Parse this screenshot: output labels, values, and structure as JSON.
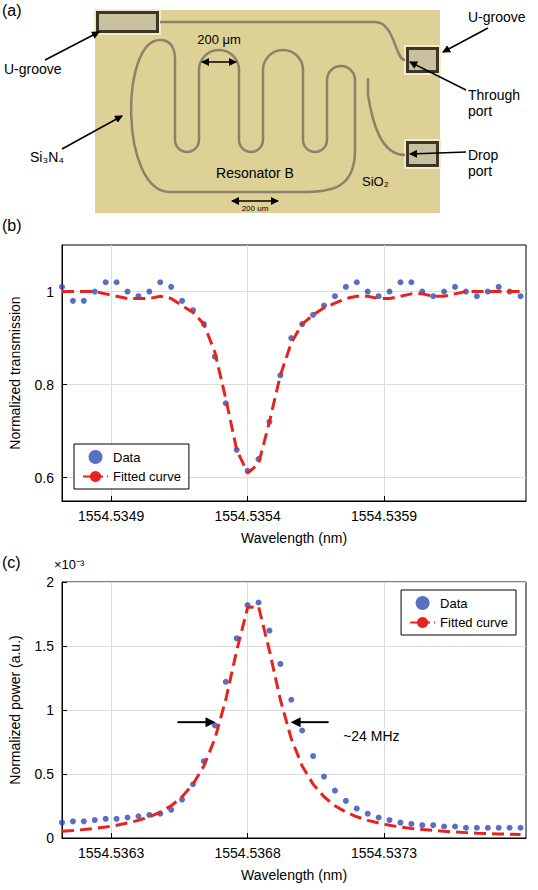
{
  "photo": {
    "panel_label": "(a)",
    "labels": {
      "u_groove_left": "U-groove",
      "u_groove_right": "U-groove",
      "spacing": "200 μm",
      "through_port": "Through port",
      "drop_port": "Drop port",
      "core": "Si₃N₄",
      "resonator": "Resonator B",
      "cladding": "SiO₂",
      "scale_bar": "200 um"
    }
  },
  "chart_data": [
    {
      "type": "line",
      "panel_label": "(b)",
      "xlabel": "Wavelength (nm)",
      "ylabel": "Normalized transmission",
      "xlim": [
        1554.53472,
        1554.53642
      ],
      "xticks": [
        1554.5349,
        1554.5354,
        1554.5359
      ],
      "ylim": [
        0.55,
        1.1
      ],
      "yticks": [
        0.6,
        0.8,
        1
      ],
      "grid": true,
      "legend": "lower left",
      "x": [
        1554.53472,
        1554.53476,
        1554.5348,
        1554.53484,
        1554.53488,
        1554.53492,
        1554.53496,
        1554.535,
        1554.53504,
        1554.53508,
        1554.53512,
        1554.53516,
        1554.5352,
        1554.53524,
        1554.53528,
        1554.53532,
        1554.53536,
        1554.5354,
        1554.53544,
        1554.53548,
        1554.53552,
        1554.53556,
        1554.5356,
        1554.53564,
        1554.53568,
        1554.53572,
        1554.53576,
        1554.5358,
        1554.53584,
        1554.53588,
        1554.53592,
        1554.53596,
        1554.536,
        1554.53604,
        1554.53608,
        1554.53612,
        1554.53616,
        1554.5362,
        1554.53624,
        1554.53628,
        1554.53632,
        1554.53636,
        1554.5364
      ],
      "series": [
        {
          "name": "Data",
          "type": "scatter",
          "marker": "circle",
          "color": "#2f4bb5",
          "values": [
            1.01,
            0.98,
            0.98,
            1.0,
            1.02,
            1.02,
            1.0,
            0.99,
            1.0,
            1.02,
            1.01,
            0.98,
            0.96,
            0.93,
            0.86,
            0.76,
            0.66,
            0.615,
            0.64,
            0.72,
            0.82,
            0.9,
            0.93,
            0.95,
            0.97,
            0.99,
            1.01,
            1.02,
            1.0,
            0.99,
            1.0,
            1.02,
            1.02,
            1.0,
            0.99,
            1.0,
            1.01,
            1.0,
            0.99,
            1.0,
            1.01,
            1.0,
            0.99
          ]
        },
        {
          "name": "Fitted curve",
          "type": "line",
          "line_style": "dashed",
          "color": "#e8231f",
          "values": [
            1.0,
            1.0,
            1.0,
            1.0,
            0.995,
            0.99,
            0.985,
            0.985,
            0.985,
            0.99,
            0.985,
            0.97,
            0.955,
            0.93,
            0.87,
            0.77,
            0.66,
            0.61,
            0.63,
            0.72,
            0.82,
            0.89,
            0.93,
            0.95,
            0.965,
            0.975,
            0.985,
            0.99,
            0.99,
            0.985,
            0.985,
            0.99,
            0.995,
            0.995,
            0.99,
            0.99,
            0.995,
            1.0,
            1.0,
            1.0,
            1.0,
            1.0,
            1.0
          ]
        }
      ]
    },
    {
      "type": "line",
      "panel_label": "(c)",
      "xlabel": "Wavelength (nm)",
      "ylabel": "Normalized power (a.u.)",
      "xlim": [
        1554.53612,
        1554.53782
      ],
      "xticks": [
        1554.5363,
        1554.5368,
        1554.5373
      ],
      "ylim": [
        0,
        0.002
      ],
      "yticks": [
        0,
        {
          "value": 0.0005,
          "label": "0.5"
        },
        {
          "value": 0.001,
          "label": "1"
        },
        {
          "value": 0.0015,
          "label": "1.5"
        },
        {
          "value": 0.002,
          "label": "2"
        }
      ],
      "grid": true,
      "legend": "upper right",
      "annotations": [
        {
          "text": "×10⁻³",
          "position": "top left"
        },
        {
          "text": "~24 MHz",
          "x": 1554.53715,
          "y": 0.0008
        }
      ],
      "x": [
        1554.53612,
        1554.53616,
        1554.5362,
        1554.53624,
        1554.53628,
        1554.53632,
        1554.53636,
        1554.5364,
        1554.53644,
        1554.53648,
        1554.53652,
        1554.53656,
        1554.5366,
        1554.53664,
        1554.53668,
        1554.53672,
        1554.53676,
        1554.5368,
        1554.53684,
        1554.53688,
        1554.53692,
        1554.53696,
        1554.537,
        1554.53704,
        1554.53708,
        1554.53712,
        1554.53716,
        1554.5372,
        1554.53724,
        1554.53728,
        1554.53732,
        1554.53736,
        1554.5374,
        1554.53744,
        1554.53748,
        1554.53752,
        1554.53756,
        1554.5376,
        1554.53764,
        1554.53768,
        1554.53772,
        1554.53776,
        1554.5378
      ],
      "series": [
        {
          "name": "Data",
          "type": "scatter",
          "marker": "circle",
          "color": "#2f4bb5",
          "values": [
            0.00012,
            0.00013,
            0.00013,
            0.00014,
            0.00015,
            0.00015,
            0.00016,
            0.00017,
            0.00018,
            0.00019,
            0.00022,
            0.0003,
            0.00042,
            0.0006,
            0.00088,
            0.00122,
            0.00156,
            0.00182,
            0.00184,
            0.00162,
            0.00136,
            0.00108,
            0.00084,
            0.00064,
            0.00048,
            0.00037,
            0.00029,
            0.00023,
            0.00019,
            0.00016,
            0.00014,
            0.00012,
            0.00011,
            0.0001,
            0.0001,
            9e-05,
            9e-05,
            8e-05,
            8e-05,
            8e-05,
            8e-05,
            8e-05,
            8e-05
          ]
        },
        {
          "name": "Fitted curve",
          "type": "line",
          "line_style": "dashed",
          "color": "#e8231f",
          "values": [
            5.2e-05,
            5.9e-05,
            6.6e-05,
            7.5e-05,
            8.6e-05,
            9.9e-05,
            0.000117,
            0.000138,
            0.000166,
            0.000203,
            0.000252,
            0.000322,
            0.00042,
            0.000563,
            0.000775,
            0.00108,
            0.001464,
            0.0018,
            0.00181,
            0.001464,
            0.00108,
            0.000775,
            0.000563,
            0.00042,
            0.000322,
            0.000252,
            0.000203,
            0.000166,
            0.000138,
            0.000117,
            9.9e-05,
            8.6e-05,
            7.5e-05,
            6.6e-05,
            5.9e-05,
            5.2e-05,
            4.7e-05,
            4.2e-05,
            3.8e-05,
            3.5e-05,
            3.2e-05,
            2.9e-05,
            2.7e-05
          ]
        }
      ]
    }
  ]
}
